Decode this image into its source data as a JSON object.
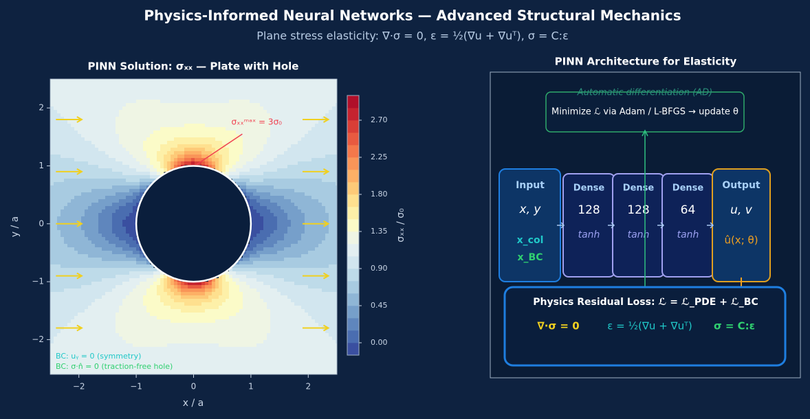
{
  "header": {
    "title": "Physics-Informed Neural Networks — Advanced Structural Mechanics",
    "subtitle": "Plane stress elasticity: ∇·σ = 0, ε = ½(∇u + ∇uᵀ), σ = C:ε"
  },
  "chart_data": {
    "type": "contour",
    "title": "PINN Solution: σₓₓ — Plate with Hole",
    "x_label": "x / a",
    "y_label": "y / a",
    "colorbar_label": "σₓₓ / σ₀",
    "xlim": [
      -2.5,
      2.5
    ],
    "ylim": [
      -2.6,
      2.5
    ],
    "xticks": [
      {
        "value": -2,
        "label": "−2"
      },
      {
        "value": -1,
        "label": "−1"
      },
      0,
      1,
      2
    ],
    "yticks": [
      {
        "value": -2,
        "label": "−2"
      },
      {
        "value": -1,
        "label": "−1"
      },
      0,
      1,
      2
    ],
    "hole_radius": 1,
    "levels": [
      -0.15,
      0,
      0.15,
      0.3,
      0.45,
      0.6,
      0.75,
      0.9,
      1.05,
      1.2,
      1.35,
      1.5,
      1.65,
      1.8,
      1.95,
      2.1,
      2.25,
      2.4,
      2.55,
      2.7,
      2.85,
      3.0
    ],
    "colors": [
      "#3a4fa0",
      "#4a6db0",
      "#5f86bd",
      "#769fca",
      "#8fb6d6",
      "#a8cbe1",
      "#bedbe9",
      "#d2e6ef",
      "#e3eff1",
      "#eff5e4",
      "#fbfbc8",
      "#fdf0a8",
      "#fee08f",
      "#fdca78",
      "#fdb066",
      "#f99558",
      "#f4784b",
      "#e85a40",
      "#d93e36",
      "#c5232f",
      "#b00f2a"
    ],
    "colorbar_ticks": [
      {
        "value": 0,
        "label": "0.00"
      },
      {
        "value": 0.45,
        "label": "0.45"
      },
      {
        "value": 0.9,
        "label": "0.90"
      },
      {
        "value": 1.35,
        "label": "1.35"
      },
      {
        "value": 1.8,
        "label": "1.80"
      },
      {
        "value": 2.25,
        "label": "2.25"
      },
      {
        "value": 2.7,
        "label": "2.70"
      }
    ],
    "annotation": "σₓₓᵐᵃˣ = 3σ₀",
    "bc_notes": [
      "BC: uᵧ = 0 (symmetry)",
      "BC: σ·n̂ = 0 (traction-free hole)"
    ]
  },
  "diagram": {
    "title": "PINN Architecture for Elasticity",
    "optimizer": {
      "label": "Automatic differentiation (AD)",
      "text": "Minimize ℒ via Adam / L-BFGS  →  update θ"
    },
    "input": {
      "label": "Input",
      "vars": "x, y",
      "points": [
        "x_col",
        "x_BC"
      ]
    },
    "layers": [
      {
        "label": "Dense",
        "units": 128,
        "activation": "tanh"
      },
      {
        "label": "Dense",
        "units": 128,
        "activation": "tanh"
      },
      {
        "label": "Dense",
        "units": 64,
        "activation": "tanh"
      }
    ],
    "output": {
      "label": "Output",
      "vars": "u, v",
      "expr": "û(x; θ)"
    },
    "loss": {
      "title": "Physics Residual Loss:  ℒ = ℒ_PDE + ℒ_BC",
      "terms": [
        "∇·σ = 0",
        "ε = ½(∇u + ∇uᵀ)",
        "σ = C:ε"
      ]
    }
  }
}
